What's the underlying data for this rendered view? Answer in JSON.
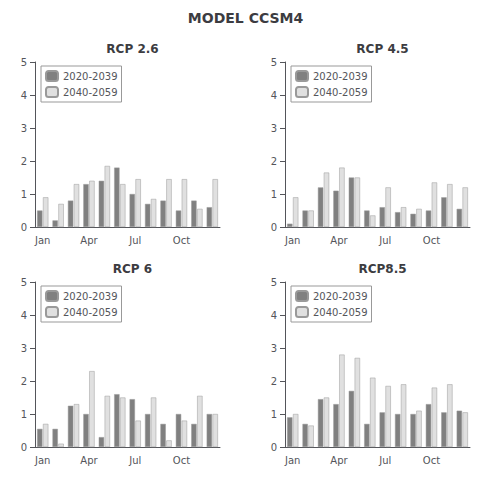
{
  "title": "MODEL CCSM4",
  "chart_data": [
    {
      "type": "bar",
      "title": "RCP 2.6",
      "categories": [
        "Jan",
        null,
        null,
        "Apr",
        null,
        null,
        "Jul",
        null,
        null,
        "Oct",
        null,
        null
      ],
      "series": [
        {
          "name": "2020-2039",
          "color": "#808080",
          "values": [
            0.5,
            0.2,
            0.8,
            1.3,
            1.4,
            1.8,
            1.0,
            0.7,
            0.8,
            0.5,
            0.8,
            0.6
          ]
        },
        {
          "name": "2040-2059",
          "color": "#e0e0e0",
          "values": [
            0.9,
            0.7,
            1.3,
            1.4,
            1.85,
            1.3,
            1.45,
            0.85,
            1.45,
            1.45,
            0.55,
            1.45
          ]
        }
      ],
      "ylim": [
        0,
        5
      ],
      "yticks": [
        0,
        1,
        2,
        3,
        4,
        5
      ],
      "grid": false,
      "legend": "upper left"
    },
    {
      "type": "bar",
      "title": "RCP 4.5",
      "categories": [
        "Jan",
        null,
        null,
        "Apr",
        null,
        null,
        "Jul",
        null,
        null,
        "Oct",
        null,
        null
      ],
      "series": [
        {
          "name": "2020-2039",
          "color": "#808080",
          "values": [
            0.1,
            0.5,
            1.2,
            1.1,
            1.5,
            0.5,
            0.6,
            0.45,
            0.4,
            0.5,
            0.9,
            0.55
          ]
        },
        {
          "name": "2040-2059",
          "color": "#e0e0e0",
          "values": [
            0.9,
            0.5,
            1.65,
            1.8,
            1.5,
            0.35,
            1.2,
            0.6,
            0.55,
            1.35,
            1.3,
            1.2
          ]
        }
      ],
      "ylim": [
        0,
        5
      ],
      "yticks": [
        0,
        1,
        2,
        3,
        4,
        5
      ],
      "grid": false,
      "legend": "upper left"
    },
    {
      "type": "bar",
      "title": "RCP 6",
      "categories": [
        "Jan",
        null,
        null,
        "Apr",
        null,
        null,
        "Jul",
        null,
        null,
        "Oct",
        null,
        null
      ],
      "series": [
        {
          "name": "2020-2039",
          "color": "#808080",
          "values": [
            0.55,
            0.55,
            1.25,
            1.0,
            0.3,
            1.6,
            1.45,
            1.0,
            0.7,
            1.0,
            0.7,
            1.0
          ]
        },
        {
          "name": "2040-2059",
          "color": "#e0e0e0",
          "values": [
            0.7,
            0.1,
            1.3,
            2.3,
            1.55,
            1.5,
            0.8,
            1.5,
            0.2,
            0.8,
            1.55,
            1.0
          ]
        }
      ],
      "ylim": [
        0,
        5
      ],
      "yticks": [
        0,
        1,
        2,
        3,
        4,
        5
      ],
      "grid": false,
      "legend": "upper left"
    },
    {
      "type": "bar",
      "title": "RCP8.5",
      "categories": [
        "Jan",
        null,
        null,
        "Apr",
        null,
        null,
        "Jul",
        null,
        null,
        "Oct",
        null,
        null
      ],
      "series": [
        {
          "name": "2020-2039",
          "color": "#808080",
          "values": [
            0.9,
            0.7,
            1.45,
            1.3,
            1.7,
            0.7,
            1.05,
            1.0,
            1.0,
            1.3,
            1.05,
            1.1
          ]
        },
        {
          "name": "2040-2059",
          "color": "#e0e0e0",
          "values": [
            1.0,
            0.65,
            1.5,
            2.8,
            2.7,
            2.1,
            1.85,
            1.9,
            1.1,
            1.8,
            1.9,
            1.05
          ]
        }
      ],
      "ylim": [
        0,
        5
      ],
      "yticks": [
        0,
        1,
        2,
        3,
        4,
        5
      ],
      "grid": false,
      "legend": "upper left"
    }
  ]
}
